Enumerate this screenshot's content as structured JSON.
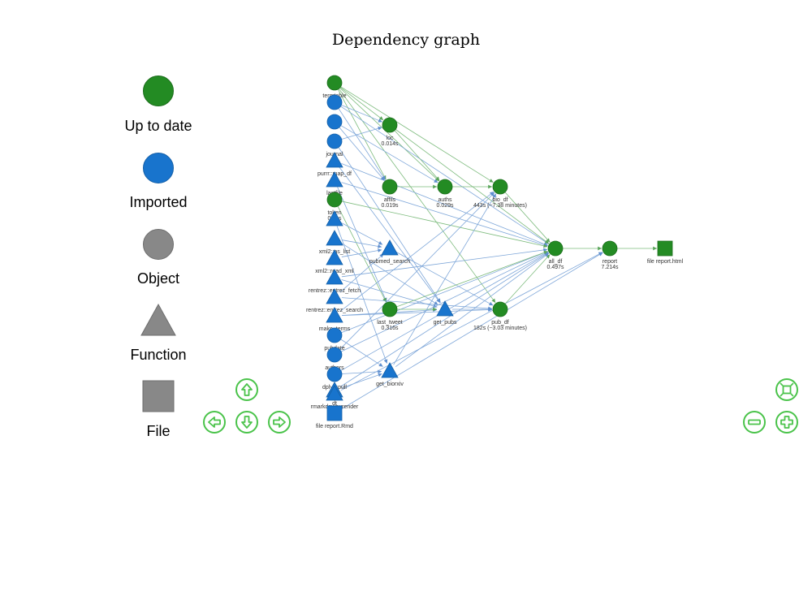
{
  "title": "Dependency graph",
  "legend": [
    {
      "label": "Up to date",
      "shape": "circle",
      "color": "#238b23"
    },
    {
      "label": "Imported",
      "shape": "circle",
      "color": "#1874cd"
    },
    {
      "label": "Object",
      "shape": "circle",
      "color": "#888888"
    },
    {
      "label": "Function",
      "shape": "triangle",
      "color": "#888888"
    },
    {
      "label": "File",
      "shape": "square",
      "color": "#888888"
    }
  ],
  "colors": {
    "up_to_date": "#238b23",
    "imported": "#1874cd",
    "edge_blue": "#7fa7d9",
    "edge_green": "#7dbb7d",
    "nav_button": "#4ac34a"
  },
  "nodes": [
    {
      "id": "termtable",
      "label": "termtable",
      "shape": "circle",
      "status": "up_to_date"
    },
    {
      "id": "n2",
      "label": "",
      "shape": "circle",
      "status": "imported"
    },
    {
      "id": "n3",
      "label": "",
      "shape": "circle",
      "status": "imported"
    },
    {
      "id": "journal",
      "label": "journal",
      "shape": "circle",
      "status": "imported"
    },
    {
      "id": "purrr_map_df",
      "label": "purrr::map_df",
      "shape": "triangle",
      "status": "imported"
    },
    {
      "id": "lastfile",
      "label": "lastfile",
      "shape": "triangle",
      "status": "imported"
    },
    {
      "id": "token",
      "label": "token",
      "sublabel": "0.01s",
      "shape": "circle",
      "status": "up_to_date"
    },
    {
      "id": "t8",
      "label": "",
      "shape": "triangle",
      "status": "imported"
    },
    {
      "id": "xml2_as_list",
      "label": "xml2::as_list",
      "shape": "triangle",
      "status": "imported"
    },
    {
      "id": "xml2_read_xml",
      "label": "xml2::read_xml",
      "shape": "triangle",
      "status": "imported"
    },
    {
      "id": "rentrez_fetch",
      "label": "rentrez::entrez_fetch",
      "shape": "triangle",
      "status": "imported"
    },
    {
      "id": "rentrez_search",
      "label": "rentrez::entrez_search",
      "shape": "triangle",
      "status": "imported"
    },
    {
      "id": "make_terms",
      "label": "make_terms",
      "shape": "triangle",
      "status": "imported"
    },
    {
      "id": "pubdate",
      "label": "pubdate",
      "shape": "circle",
      "status": "imported"
    },
    {
      "id": "authors",
      "label": "authors",
      "shape": "circle",
      "status": "imported"
    },
    {
      "id": "dplyr_pull",
      "label": "dplyr::pull",
      "shape": "circle",
      "status": "imported"
    },
    {
      "id": "dt",
      "label": "dt",
      "shape": "triangle",
      "status": "imported"
    },
    {
      "id": "rmarkdown_render",
      "label": "rmarkdown::render",
      "shape": "triangle",
      "status": "imported"
    },
    {
      "id": "file_report_rmd",
      "label": "file report.Rmd",
      "shape": "square",
      "status": "imported"
    },
    {
      "id": "loc",
      "label": "loc",
      "sublabel": "0.014s",
      "shape": "circle",
      "status": "up_to_date"
    },
    {
      "id": "affils",
      "label": "affils",
      "sublabel": "0.019s",
      "shape": "circle",
      "status": "up_to_date"
    },
    {
      "id": "auths",
      "label": "auths",
      "sublabel": "0.029s",
      "shape": "circle",
      "status": "up_to_date"
    },
    {
      "id": "bio_df",
      "label": "bio_df",
      "sublabel": "443s (~7.38 minutes)",
      "shape": "circle",
      "status": "up_to_date"
    },
    {
      "id": "pubmed_search",
      "label": "pubmed_search",
      "shape": "triangle",
      "status": "imported"
    },
    {
      "id": "last_tweet",
      "label": "last_tweet",
      "sublabel": "0.316s",
      "shape": "circle",
      "status": "up_to_date"
    },
    {
      "id": "get_pubs",
      "label": "get_pubs",
      "shape": "triangle",
      "status": "imported"
    },
    {
      "id": "pub_df",
      "label": "pub_df",
      "sublabel": "182s (~3.03 minutes)",
      "shape": "circle",
      "status": "up_to_date"
    },
    {
      "id": "get_biorxiv",
      "label": "get_biorxiv",
      "shape": "triangle",
      "status": "imported"
    },
    {
      "id": "all_df",
      "label": "all_df",
      "sublabel": "0.497s",
      "shape": "circle",
      "status": "up_to_date"
    },
    {
      "id": "report",
      "label": "report",
      "sublabel": "7.214s",
      "shape": "circle",
      "status": "up_to_date"
    },
    {
      "id": "file_report_html",
      "label": "file report.html",
      "shape": "square",
      "status": "up_to_date"
    }
  ],
  "edges": [
    [
      "termtable",
      "loc",
      "green"
    ],
    [
      "termtable",
      "affils",
      "green"
    ],
    [
      "termtable",
      "auths",
      "green"
    ],
    [
      "termtable",
      "bio_df",
      "green"
    ],
    [
      "termtable",
      "pub_df",
      "green"
    ],
    [
      "n2",
      "loc",
      "blue"
    ],
    [
      "n2",
      "affils",
      "blue"
    ],
    [
      "n2",
      "all_df",
      "blue"
    ],
    [
      "n3",
      "affils",
      "blue"
    ],
    [
      "n3",
      "auths",
      "blue"
    ],
    [
      "journal",
      "get_pubs",
      "blue"
    ],
    [
      "journal",
      "loc",
      "blue"
    ],
    [
      "purrr_map_df",
      "all_df",
      "blue"
    ],
    [
      "purrr_map_df",
      "get_pubs",
      "blue"
    ],
    [
      "lastfile",
      "all_df",
      "blue"
    ],
    [
      "lastfile",
      "last_tweet",
      "blue"
    ],
    [
      "token",
      "last_tweet",
      "green"
    ],
    [
      "token",
      "all_df",
      "green"
    ],
    [
      "t8",
      "pubmed_search",
      "blue"
    ],
    [
      "t8",
      "get_biorxiv",
      "blue"
    ],
    [
      "xml2_as_list",
      "pubmed_search",
      "blue"
    ],
    [
      "xml2_as_list",
      "get_pubs",
      "blue"
    ],
    [
      "xml2_read_xml",
      "pubmed_search",
      "blue"
    ],
    [
      "rentrez_fetch",
      "get_pubs",
      "blue"
    ],
    [
      "rentrez_fetch",
      "all_df",
      "blue"
    ],
    [
      "rentrez_search",
      "pubmed_search",
      "blue"
    ],
    [
      "rentrez_search",
      "pub_df",
      "blue"
    ],
    [
      "make_terms",
      "get_pubs",
      "blue"
    ],
    [
      "make_terms",
      "bio_df",
      "blue"
    ],
    [
      "make_terms",
      "pub_df",
      "blue"
    ],
    [
      "pubdate",
      "all_df",
      "blue"
    ],
    [
      "pubdate",
      "get_biorxiv",
      "blue"
    ],
    [
      "authors",
      "all_df",
      "blue"
    ],
    [
      "authors",
      "bio_df",
      "blue"
    ],
    [
      "dplyr_pull",
      "all_df",
      "blue"
    ],
    [
      "dplyr_pull",
      "get_biorxiv",
      "blue"
    ],
    [
      "dt",
      "all_df",
      "blue"
    ],
    [
      "dt",
      "get_biorxiv",
      "blue"
    ],
    [
      "rmarkdown_render",
      "report",
      "blue"
    ],
    [
      "file_report_rmd",
      "report",
      "blue"
    ],
    [
      "loc",
      "auths",
      "green"
    ],
    [
      "loc",
      "all_df",
      "green"
    ],
    [
      "affils",
      "auths",
      "green"
    ],
    [
      "auths",
      "bio_df",
      "green"
    ],
    [
      "bio_df",
      "all_df",
      "green"
    ],
    [
      "pubmed_search",
      "pub_df",
      "blue"
    ],
    [
      "last_tweet",
      "get_pubs",
      "green"
    ],
    [
      "last_tweet",
      "all_df",
      "green"
    ],
    [
      "get_pubs",
      "pub_df",
      "blue"
    ],
    [
      "pub_df",
      "all_df",
      "green"
    ],
    [
      "get_biorxiv",
      "bio_df",
      "blue"
    ],
    [
      "get_biorxiv",
      "all_df",
      "blue"
    ],
    [
      "all_df",
      "report",
      "green"
    ],
    [
      "report",
      "file_report_html",
      "green"
    ]
  ],
  "controls": [
    {
      "name": "pan-up-button",
      "icon": "arrow-up-icon"
    },
    {
      "name": "pan-left-button",
      "icon": "arrow-left-icon"
    },
    {
      "name": "pan-down-button",
      "icon": "arrow-down-icon"
    },
    {
      "name": "pan-right-button",
      "icon": "arrow-right-icon"
    },
    {
      "name": "zoom-fit-button",
      "icon": "fit-screen-icon"
    },
    {
      "name": "zoom-out-button",
      "icon": "minus-icon"
    },
    {
      "name": "zoom-in-button",
      "icon": "plus-icon"
    }
  ]
}
